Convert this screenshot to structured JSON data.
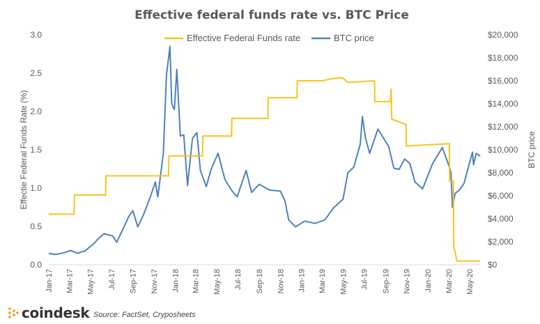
{
  "chart_data": {
    "type": "line",
    "title": "Effective federal funds rate vs. BTC Price",
    "y_left_label": "Effectie Federal Funds Rate (%)",
    "y_right_label": "BTC price",
    "y_left_lim": [
      0,
      3.0
    ],
    "y_right_lim": [
      0,
      20000
    ],
    "y_left_ticks": [
      "0.0",
      "0.5",
      "1.0",
      "1.5",
      "2.0",
      "2.5",
      "3.0"
    ],
    "y_right_ticks": [
      "$0",
      "$2,000",
      "$4,000",
      "$6,000",
      "$8,000",
      "$10,000",
      "$12,000",
      "$14,000",
      "$16,000",
      "$18,000",
      "$20,000"
    ],
    "x_ticks": [
      "Jan-17",
      "Mar-17",
      "May-17",
      "Jul-17",
      "Sep-17",
      "Nov-17",
      "Jan-18",
      "Mar-18",
      "May-18",
      "Jul-18",
      "Sep-18",
      "Nov-18",
      "Jan-19",
      "Mar-19",
      "May-19",
      "Jul-19",
      "Sep-19",
      "Nov-19",
      "Jan-20",
      "Mar-20",
      "May-20"
    ],
    "legend_position": "top-center",
    "grid": false,
    "series": [
      {
        "name": "Effective Federal Funds rate",
        "axis": "left",
        "color": "#f5c518",
        "x": [
          "2017-01-01",
          "2017-03-15",
          "2017-03-16",
          "2017-06-14",
          "2017-06-15",
          "2017-12-13",
          "2017-12-14",
          "2018-03-21",
          "2018-03-22",
          "2018-06-13",
          "2018-06-14",
          "2018-09-26",
          "2018-09-27",
          "2018-12-19",
          "2018-12-20",
          "2019-03-01",
          "2019-04-01",
          "2019-04-30",
          "2019-05-15",
          "2019-07-31",
          "2019-08-01",
          "2019-09-15",
          "2019-09-17",
          "2019-09-19",
          "2019-10-30",
          "2019-10-31",
          "2020-03-03",
          "2020-03-04",
          "2020-03-15",
          "2020-03-16",
          "2020-03-25",
          "2020-05-31"
        ],
        "values": [
          0.66,
          0.66,
          0.91,
          0.91,
          1.16,
          1.16,
          1.42,
          1.42,
          1.68,
          1.68,
          1.91,
          1.91,
          2.18,
          2.18,
          2.4,
          2.4,
          2.43,
          2.44,
          2.38,
          2.4,
          2.13,
          2.13,
          2.3,
          1.9,
          1.83,
          1.55,
          1.58,
          1.09,
          1.09,
          0.25,
          0.05,
          0.05
        ]
      },
      {
        "name": "BTC price",
        "axis": "right",
        "color": "#4f81bd",
        "x": [
          "2017-01-01",
          "2017-01-20",
          "2017-02-15",
          "2017-03-05",
          "2017-03-25",
          "2017-04-15",
          "2017-05-10",
          "2017-05-25",
          "2017-06-10",
          "2017-07-05",
          "2017-07-16",
          "2017-08-05",
          "2017-08-20",
          "2017-09-01",
          "2017-09-15",
          "2017-10-01",
          "2017-10-20",
          "2017-11-05",
          "2017-11-12",
          "2017-11-28",
          "2017-12-07",
          "2017-12-17",
          "2017-12-22",
          "2017-12-30",
          "2018-01-06",
          "2018-01-16",
          "2018-01-26",
          "2018-02-06",
          "2018-02-20",
          "2018-03-05",
          "2018-03-15",
          "2018-04-01",
          "2018-04-15",
          "2018-05-05",
          "2018-05-25",
          "2018-06-15",
          "2018-06-29",
          "2018-07-25",
          "2018-08-10",
          "2018-09-01",
          "2018-10-01",
          "2018-11-01",
          "2018-11-14",
          "2018-11-25",
          "2018-12-15",
          "2019-01-10",
          "2019-02-10",
          "2019-03-10",
          "2019-04-02",
          "2019-05-01",
          "2019-05-15",
          "2019-06-01",
          "2019-06-20",
          "2019-06-26",
          "2019-07-05",
          "2019-07-17",
          "2019-08-10",
          "2019-09-10",
          "2019-09-25",
          "2019-10-10",
          "2019-10-26",
          "2019-11-10",
          "2019-11-25",
          "2019-12-17",
          "2020-01-15",
          "2020-02-12",
          "2020-03-01",
          "2020-03-08",
          "2020-03-12",
          "2020-03-20",
          "2020-04-01",
          "2020-04-15",
          "2020-04-29",
          "2020-05-09",
          "2020-05-12",
          "2020-05-20",
          "2020-05-31"
        ],
        "values": [
          1000,
          900,
          1050,
          1250,
          1000,
          1200,
          1800,
          2300,
          2700,
          2500,
          1950,
          3200,
          4200,
          4700,
          3300,
          4300,
          5800,
          7200,
          5900,
          9700,
          16500,
          19000,
          14000,
          13500,
          17000,
          11200,
          11300,
          6900,
          11000,
          11500,
          8200,
          6800,
          8300,
          9700,
          7400,
          6400,
          5900,
          8200,
          6300,
          7000,
          6500,
          6400,
          5600,
          3900,
          3300,
          3800,
          3600,
          3900,
          4900,
          5700,
          8000,
          8500,
          10500,
          12900,
          11000,
          9700,
          11800,
          10300,
          8400,
          8300,
          9200,
          8800,
          7200,
          6600,
          8800,
          10200,
          8700,
          8000,
          5000,
          6200,
          6500,
          7100,
          8700,
          9800,
          8700,
          9700,
          9450
        ]
      }
    ]
  },
  "brand": {
    "name": "coindesk"
  },
  "source_note": "Source:  FactSet, Cryposheets"
}
